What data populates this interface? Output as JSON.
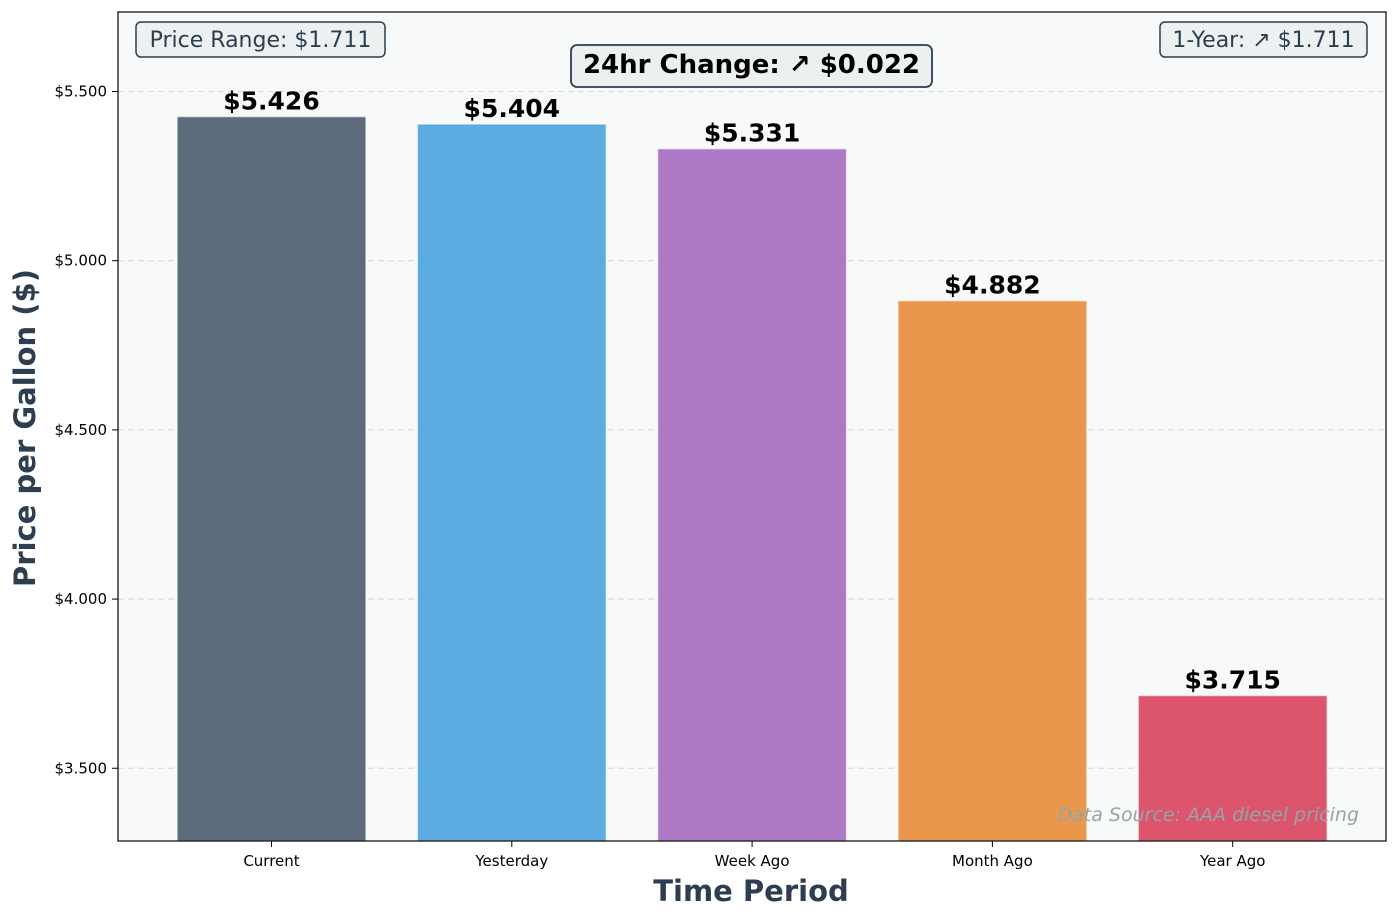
{
  "chart_data": {
    "type": "bar",
    "categories": [
      "Current",
      "Yesterday",
      "Week Ago",
      "Month Ago",
      "Year Ago"
    ],
    "values": [
      5.426,
      5.404,
      5.331,
      4.882,
      3.715
    ],
    "value_labels": [
      "$5.426",
      "$5.404",
      "$5.331",
      "$4.882",
      "$3.715"
    ],
    "colors": [
      "#34495e",
      "#3498db",
      "#9b59b6",
      "#e67e22",
      "#d62c4a"
    ],
    "xlabel": "Time Period",
    "ylabel": "Price per Gallon ($)",
    "ylim": [
      3.285,
      5.735
    ],
    "yticks": [
      3.5,
      4.0,
      4.5,
      5.0,
      5.5
    ],
    "ytick_labels": [
      "$3.500",
      "$4.000",
      "$4.500",
      "$5.000",
      "$5.500"
    ],
    "grid": "horizontal dashed",
    "annotations": {
      "price_range": "Price Range: $1.711",
      "one_year": "1-Year: ↗ $1.711",
      "change_24hr": "24hr Change: ↗ $0.022",
      "source": "Data Source: AAA diesel pricing"
    }
  }
}
